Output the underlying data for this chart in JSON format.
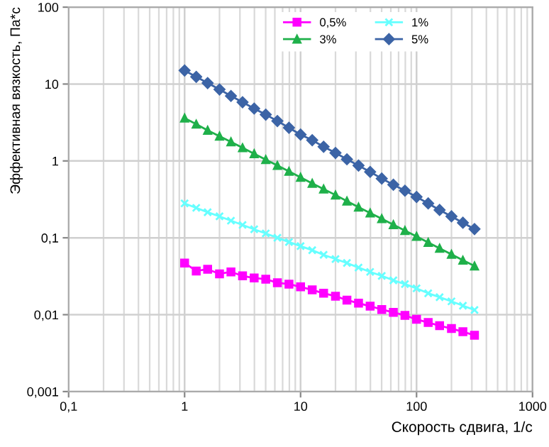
{
  "chart_data": {
    "type": "line",
    "xlabel": "Скорость сдвига, 1/с",
    "ylabel": "Эффективная вязкость, Па*с",
    "log": "xy",
    "grid": true,
    "legend": "top",
    "x": [
      1,
      1.26,
      1.58,
      2,
      2.51,
      3.16,
      3.98,
      5.01,
      6.31,
      7.94,
      10,
      12.6,
      15.8,
      20,
      25.1,
      31.6,
      39.8,
      50.1,
      63.1,
      79.4,
      100,
      126,
      158,
      200,
      251,
      316
    ],
    "xlim": [
      0.1,
      1000
    ],
    "ylim": [
      0.001,
      100
    ],
    "xticks": [
      {
        "value": 0.1,
        "label": "0,1"
      },
      1,
      10,
      100,
      1000
    ],
    "yticks": [
      {
        "value": 0.001,
        "label": "0,001"
      },
      {
        "value": 0.01,
        "label": "0,01"
      },
      {
        "value": 0.1,
        "label": "0,1"
      },
      1,
      10,
      100
    ],
    "series": [
      {
        "name": "0,5%",
        "color": "#ff00ff",
        "marker": "square",
        "values": [
          0.047,
          0.037,
          0.039,
          0.034,
          0.036,
          0.032,
          0.03,
          0.029,
          0.026,
          0.025,
          0.023,
          0.021,
          0.019,
          0.0174,
          0.0155,
          0.0141,
          0.0129,
          0.0117,
          0.0107,
          0.0098,
          0.0087,
          0.0079,
          0.0072,
          0.0066,
          0.006,
          0.0054
        ]
      },
      {
        "name": "1%",
        "color": "#66ffff",
        "marker": "cross",
        "values": [
          0.28,
          0.245,
          0.215,
          0.19,
          0.167,
          0.147,
          0.129,
          0.114,
          0.1,
          0.088,
          0.078,
          0.069,
          0.06,
          0.053,
          0.047,
          0.041,
          0.036,
          0.032,
          0.028,
          0.025,
          0.022,
          0.019,
          0.0169,
          0.0149,
          0.0131,
          0.0115
        ]
      },
      {
        "name": "3%",
        "color": "#1fb04a",
        "marker": "triangle",
        "values": [
          3.6,
          3.0,
          2.5,
          2.1,
          1.77,
          1.48,
          1.24,
          1.04,
          0.87,
          0.73,
          0.61,
          0.51,
          0.43,
          0.36,
          0.3,
          0.25,
          0.21,
          0.177,
          0.148,
          0.124,
          0.104,
          0.087,
          0.073,
          0.061,
          0.051,
          0.043
        ]
      },
      {
        "name": "5%",
        "color": "#3c64a6",
        "marker": "diamond",
        "values": [
          15.0,
          12.4,
          10.3,
          8.5,
          7.0,
          5.8,
          4.8,
          4.0,
          3.3,
          2.7,
          2.2,
          1.86,
          1.53,
          1.27,
          1.05,
          0.87,
          0.72,
          0.59,
          0.49,
          0.41,
          0.34,
          0.28,
          0.23,
          0.19,
          0.157,
          0.13
        ]
      }
    ]
  }
}
